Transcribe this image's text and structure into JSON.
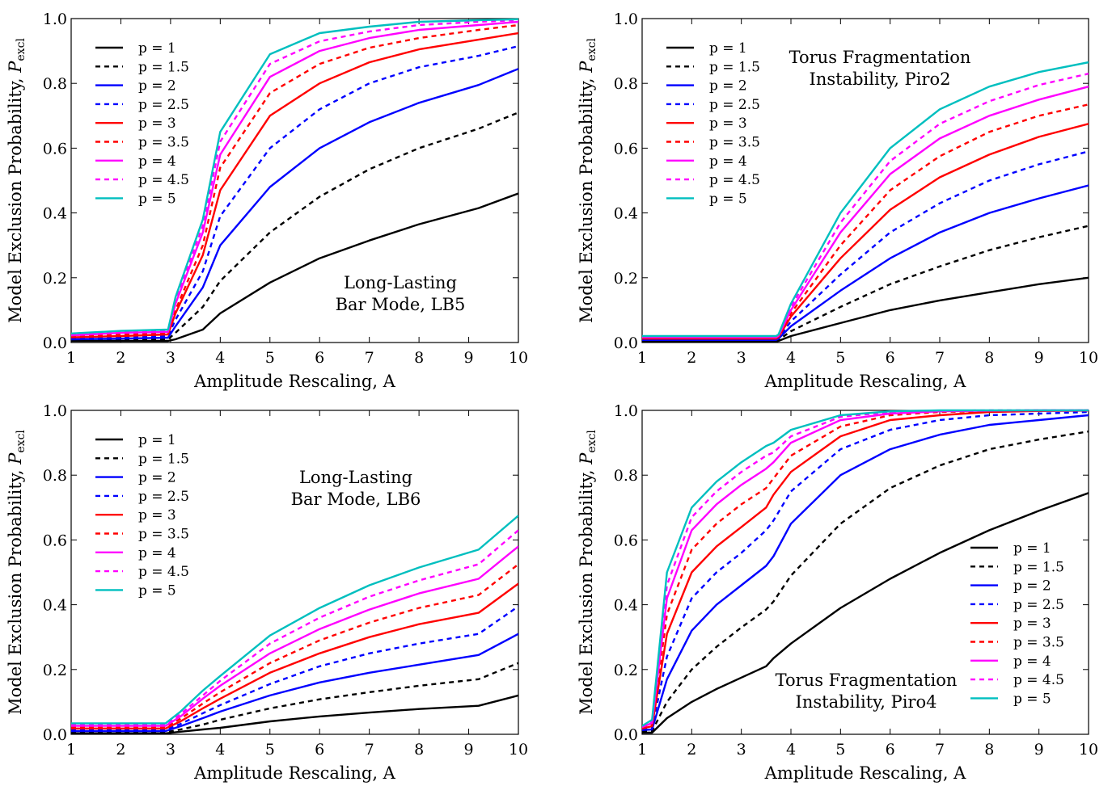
{
  "series_styles": [
    {
      "color": "#000000",
      "dash": "solid"
    },
    {
      "color": "#000000",
      "dash": "dashed"
    },
    {
      "color": "#0000ff",
      "dash": "solid"
    },
    {
      "color": "#0000ff",
      "dash": "dashed"
    },
    {
      "color": "#ff0000",
      "dash": "solid"
    },
    {
      "color": "#ff0000",
      "dash": "dashed"
    },
    {
      "color": "#ff00ff",
      "dash": "solid"
    },
    {
      "color": "#ff00ff",
      "dash": "dashed"
    },
    {
      "color": "#00bfbf",
      "dash": "solid"
    }
  ],
  "chart_data": [
    {
      "type": "line",
      "annotation": [
        "Long-Lasting",
        "Bar Mode, LB5"
      ],
      "xlabel": "Amplitude Rescaling, A",
      "ylabel": "Model Exclusion Probability, ",
      "ylabel_math": "P",
      "ylabel_sub": "excl",
      "xlim": [
        1,
        10
      ],
      "ylim": [
        0,
        1
      ],
      "xticks": [
        1,
        2,
        3,
        4,
        5,
        6,
        7,
        8,
        9,
        10
      ],
      "xtick_labels": [
        "1",
        "2",
        "3",
        "4",
        "5",
        "6",
        "7",
        "8",
        "9",
        "10"
      ],
      "yticks": [
        0,
        0.2,
        0.4,
        0.6,
        0.8,
        1.0
      ],
      "ytick_labels": [
        "0.0",
        "0.2",
        "0.4",
        "0.6",
        "0.8",
        "1.0"
      ],
      "legend_position": "top-left",
      "grid": false,
      "x": [
        1,
        2,
        2.95,
        3.1,
        3.65,
        4,
        5,
        6,
        7,
        8,
        9.2,
        10
      ],
      "series": [
        {
          "name": "p = 1",
          "values": [
            0.005,
            0.005,
            0.005,
            0.01,
            0.04,
            0.09,
            0.185,
            0.26,
            0.315,
            0.365,
            0.415,
            0.46
          ]
        },
        {
          "name": "p = 1.5",
          "values": [
            0.008,
            0.008,
            0.01,
            0.03,
            0.11,
            0.19,
            0.34,
            0.45,
            0.535,
            0.6,
            0.66,
            0.71
          ]
        },
        {
          "name": "p = 2",
          "values": [
            0.01,
            0.012,
            0.015,
            0.05,
            0.17,
            0.3,
            0.48,
            0.6,
            0.68,
            0.74,
            0.795,
            0.845
          ]
        },
        {
          "name": "p = 2.5",
          "values": [
            0.013,
            0.016,
            0.02,
            0.07,
            0.22,
            0.39,
            0.6,
            0.72,
            0.8,
            0.85,
            0.885,
            0.915
          ]
        },
        {
          "name": "p = 3",
          "values": [
            0.016,
            0.02,
            0.025,
            0.09,
            0.27,
            0.47,
            0.7,
            0.8,
            0.865,
            0.905,
            0.935,
            0.955
          ]
        },
        {
          "name": "p = 3.5",
          "values": [
            0.019,
            0.025,
            0.03,
            0.1,
            0.3,
            0.54,
            0.77,
            0.86,
            0.91,
            0.94,
            0.965,
            0.98
          ]
        },
        {
          "name": "p = 4",
          "values": [
            0.022,
            0.03,
            0.033,
            0.12,
            0.34,
            0.58,
            0.82,
            0.9,
            0.94,
            0.965,
            0.98,
            0.99
          ]
        },
        {
          "name": "p = 4.5",
          "values": [
            0.025,
            0.033,
            0.036,
            0.13,
            0.36,
            0.62,
            0.86,
            0.93,
            0.96,
            0.98,
            0.99,
            0.995
          ]
        },
        {
          "name": "p = 5",
          "values": [
            0.028,
            0.036,
            0.04,
            0.14,
            0.38,
            0.65,
            0.89,
            0.955,
            0.975,
            0.99,
            0.995,
            0.998
          ]
        }
      ]
    },
    {
      "type": "line",
      "annotation": [
        "Torus Fragmentation",
        "Instability, Piro2"
      ],
      "xlabel": "Amplitude Rescaling, A",
      "ylabel": "Model Exclusion Probability, ",
      "ylabel_math": "P",
      "ylabel_sub": "excl",
      "xlim": [
        1,
        10
      ],
      "ylim": [
        0,
        1
      ],
      "xticks": [
        1,
        2,
        3,
        4,
        5,
        6,
        7,
        8,
        9,
        10
      ],
      "xtick_labels": [
        "1",
        "2",
        "3",
        "4",
        "5",
        "6",
        "7",
        "8",
        "9",
        "10"
      ],
      "yticks": [
        0,
        0.2,
        0.4,
        0.6,
        0.8,
        1.0
      ],
      "ytick_labels": [
        "0.0",
        "0.2",
        "0.4",
        "0.6",
        "0.8",
        "1.0"
      ],
      "legend_position": "top-left",
      "grid": false,
      "x": [
        1,
        2,
        3,
        3.7,
        3.75,
        4,
        5,
        6,
        7,
        8,
        9,
        10
      ],
      "series": [
        {
          "name": "p = 1",
          "values": [
            0.003,
            0.003,
            0.003,
            0.003,
            0.005,
            0.02,
            0.06,
            0.1,
            0.13,
            0.155,
            0.18,
            0.2
          ]
        },
        {
          "name": "p = 1.5",
          "values": [
            0.005,
            0.005,
            0.005,
            0.005,
            0.008,
            0.035,
            0.11,
            0.18,
            0.235,
            0.285,
            0.325,
            0.36
          ]
        },
        {
          "name": "p = 2",
          "values": [
            0.008,
            0.008,
            0.008,
            0.008,
            0.012,
            0.05,
            0.16,
            0.26,
            0.34,
            0.4,
            0.445,
            0.485
          ]
        },
        {
          "name": "p = 2.5",
          "values": [
            0.01,
            0.01,
            0.01,
            0.01,
            0.015,
            0.065,
            0.21,
            0.34,
            0.43,
            0.5,
            0.55,
            0.59
          ]
        },
        {
          "name": "p = 3",
          "values": [
            0.012,
            0.012,
            0.012,
            0.012,
            0.017,
            0.08,
            0.26,
            0.41,
            0.51,
            0.58,
            0.635,
            0.675
          ]
        },
        {
          "name": "p = 3.5",
          "values": [
            0.014,
            0.014,
            0.014,
            0.014,
            0.019,
            0.09,
            0.3,
            0.47,
            0.575,
            0.65,
            0.7,
            0.735
          ]
        },
        {
          "name": "p = 4",
          "values": [
            0.016,
            0.016,
            0.016,
            0.016,
            0.021,
            0.1,
            0.34,
            0.52,
            0.63,
            0.7,
            0.75,
            0.79
          ]
        },
        {
          "name": "p = 4.5",
          "values": [
            0.018,
            0.018,
            0.018,
            0.018,
            0.023,
            0.11,
            0.37,
            0.56,
            0.675,
            0.745,
            0.795,
            0.83
          ]
        },
        {
          "name": "p = 5",
          "values": [
            0.02,
            0.02,
            0.02,
            0.02,
            0.025,
            0.12,
            0.4,
            0.6,
            0.72,
            0.79,
            0.835,
            0.865
          ]
        }
      ]
    },
    {
      "type": "line",
      "annotation": [
        "Long-Lasting",
        "Bar Mode, LB6"
      ],
      "xlabel": "Amplitude Rescaling, A",
      "ylabel": "Model Exclusion Probability, ",
      "ylabel_math": "P",
      "ylabel_sub": "excl",
      "xlim": [
        1,
        10
      ],
      "ylim": [
        0,
        1
      ],
      "xticks": [
        1,
        2,
        3,
        4,
        5,
        6,
        7,
        8,
        9,
        10
      ],
      "xtick_labels": [
        "1",
        "2",
        "3",
        "4",
        "5",
        "6",
        "7",
        "8",
        "9",
        "10"
      ],
      "yticks": [
        0,
        0.2,
        0.4,
        0.6,
        0.8,
        1.0
      ],
      "ytick_labels": [
        "0.0",
        "0.2",
        "0.4",
        "0.6",
        "0.8",
        "1.0"
      ],
      "legend_position": "top-left",
      "grid": false,
      "x": [
        1,
        2,
        2.9,
        3.2,
        3.65,
        4,
        5,
        6,
        7,
        8,
        9.2,
        10
      ],
      "series": [
        {
          "name": "p = 1",
          "values": [
            0.003,
            0.003,
            0.003,
            0.008,
            0.015,
            0.02,
            0.04,
            0.055,
            0.067,
            0.078,
            0.088,
            0.12
          ]
        },
        {
          "name": "p = 1.5",
          "values": [
            0.006,
            0.006,
            0.006,
            0.015,
            0.03,
            0.045,
            0.08,
            0.108,
            0.13,
            0.15,
            0.17,
            0.22
          ]
        },
        {
          "name": "p = 2",
          "values": [
            0.01,
            0.01,
            0.01,
            0.025,
            0.05,
            0.07,
            0.12,
            0.16,
            0.19,
            0.215,
            0.245,
            0.31
          ]
        },
        {
          "name": "p = 2.5",
          "values": [
            0.014,
            0.014,
            0.014,
            0.032,
            0.065,
            0.09,
            0.155,
            0.21,
            0.25,
            0.28,
            0.31,
            0.395
          ]
        },
        {
          "name": "p = 3",
          "values": [
            0.018,
            0.018,
            0.018,
            0.04,
            0.08,
            0.11,
            0.19,
            0.25,
            0.3,
            0.34,
            0.375,
            0.465
          ]
        },
        {
          "name": "p = 3.5",
          "values": [
            0.022,
            0.022,
            0.022,
            0.048,
            0.095,
            0.13,
            0.22,
            0.29,
            0.345,
            0.39,
            0.43,
            0.525
          ]
        },
        {
          "name": "p = 4",
          "values": [
            0.026,
            0.026,
            0.026,
            0.055,
            0.11,
            0.15,
            0.25,
            0.325,
            0.385,
            0.435,
            0.48,
            0.58
          ]
        },
        {
          "name": "p = 4.5",
          "values": [
            0.03,
            0.03,
            0.03,
            0.062,
            0.12,
            0.165,
            0.28,
            0.36,
            0.425,
            0.475,
            0.525,
            0.63
          ]
        },
        {
          "name": "p = 5",
          "values": [
            0.034,
            0.034,
            0.034,
            0.07,
            0.135,
            0.18,
            0.305,
            0.39,
            0.46,
            0.515,
            0.57,
            0.675
          ]
        }
      ]
    },
    {
      "type": "line",
      "annotation": [
        "Torus Fragmentation",
        "Instability, Piro4"
      ],
      "xlabel": "Amplitude Rescaling, A",
      "ylabel": "Model Exclusion Probability, ",
      "ylabel_math": "P",
      "ylabel_sub": "excl",
      "xlim": [
        1,
        10
      ],
      "ylim": [
        0,
        1
      ],
      "xticks": [
        1,
        2,
        3,
        4,
        5,
        6,
        7,
        8,
        9,
        10
      ],
      "xtick_labels": [
        "1",
        "2",
        "3",
        "4",
        "5",
        "6",
        "7",
        "8",
        "9",
        "10"
      ],
      "yticks": [
        0,
        0.2,
        0.4,
        0.6,
        0.8,
        1.0
      ],
      "ytick_labels": [
        "0.0",
        "0.2",
        "0.4",
        "0.6",
        "0.8",
        "1.0"
      ],
      "legend_position": "bottom-right",
      "grid": false,
      "x": [
        1,
        1.2,
        1.5,
        2,
        2.5,
        3,
        3.5,
        3.65,
        4,
        5,
        6,
        7,
        8,
        9,
        10
      ],
      "series": [
        {
          "name": "p = 1",
          "values": [
            0.005,
            0.005,
            0.05,
            0.1,
            0.14,
            0.175,
            0.21,
            0.235,
            0.28,
            0.39,
            0.48,
            0.56,
            0.63,
            0.69,
            0.745
          ]
        },
        {
          "name": "p = 1.5",
          "values": [
            0.01,
            0.01,
            0.1,
            0.2,
            0.27,
            0.33,
            0.385,
            0.41,
            0.49,
            0.65,
            0.76,
            0.83,
            0.88,
            0.91,
            0.935
          ]
        },
        {
          "name": "p = 2",
          "values": [
            0.013,
            0.015,
            0.17,
            0.32,
            0.4,
            0.46,
            0.52,
            0.55,
            0.65,
            0.8,
            0.88,
            0.925,
            0.955,
            0.97,
            0.985
          ]
        },
        {
          "name": "p = 2.5",
          "values": [
            0.016,
            0.02,
            0.24,
            0.42,
            0.5,
            0.56,
            0.63,
            0.66,
            0.75,
            0.88,
            0.94,
            0.97,
            0.985,
            0.99,
            0.995
          ]
        },
        {
          "name": "p = 3",
          "values": [
            0.018,
            0.025,
            0.31,
            0.5,
            0.58,
            0.64,
            0.7,
            0.74,
            0.81,
            0.92,
            0.97,
            0.985,
            0.995,
            0.998,
            0.999
          ]
        },
        {
          "name": "p = 3.5",
          "values": [
            0.02,
            0.03,
            0.37,
            0.57,
            0.65,
            0.71,
            0.76,
            0.79,
            0.86,
            0.95,
            0.985,
            0.995,
            0.998,
            0.999,
            1.0
          ]
        },
        {
          "name": "p = 4",
          "values": [
            0.022,
            0.035,
            0.42,
            0.63,
            0.71,
            0.77,
            0.82,
            0.84,
            0.9,
            0.97,
            0.99,
            0.997,
            0.999,
            1.0,
            1.0
          ]
        },
        {
          "name": "p = 4.5",
          "values": [
            0.024,
            0.04,
            0.46,
            0.67,
            0.75,
            0.81,
            0.86,
            0.87,
            0.92,
            0.98,
            0.995,
            0.999,
            1.0,
            1.0,
            1.0
          ]
        },
        {
          "name": "p = 5",
          "values": [
            0.026,
            0.045,
            0.5,
            0.7,
            0.78,
            0.84,
            0.89,
            0.9,
            0.94,
            0.985,
            0.997,
            1.0,
            1.0,
            1.0,
            1.0
          ]
        }
      ]
    }
  ]
}
